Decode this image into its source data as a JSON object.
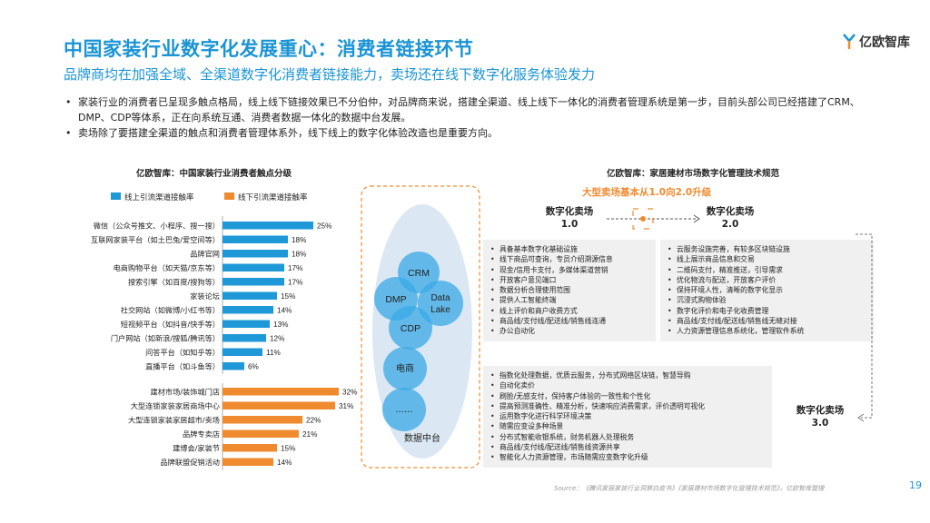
{
  "header": {
    "title": "中国家装行业数字化发展重心：消费者链接环节",
    "subtitle": "品牌商均在加强全域、全渠道数字化消费者链接能力，卖场还在线下数字化服务体验发力",
    "logo_text": "亿欧智库"
  },
  "bullets": [
    "家装行业的消费者已呈现多触点格局，线上线下链接效果已不分伯仲，对品牌商来说，搭建全渠道、线上线下一体化的消费者管理系统是第一步，目前头部公司已经搭建了CRM、DMP、CDP等体系，正在向系统互通、消费者数据一体化的数据中台发展。",
    "卖场除了要搭建全渠道的触点和消费者管理体系外，线下线上的数字化体验改造也是重要方向。"
  ],
  "chart_data": {
    "type": "bar",
    "orientation": "horizontal",
    "title": "亿欧智库：中国家装行业消费者触点分级",
    "legend_position": "top",
    "series": [
      {
        "name": "线上引流渠道接触率",
        "color": "#1e98d7",
        "categories": [
          "微信（公众号推文、小程序、搜一搜）",
          "互联网家装平台（如土巴兔/爱空间等）",
          "品牌官网",
          "电商购物平台（如天猫/京东等）",
          "搜索引擎（如百度/搜狗等）",
          "家装论坛",
          "社交网站（如微博/小红书等）",
          "短视频平台（如抖音/快手等）",
          "门户网站（如新浪/搜狐/腾讯等）",
          "问答平台（如知乎等）",
          "直播平台（如斗鱼等）"
        ],
        "values": [
          25,
          18,
          18,
          17,
          17,
          15,
          14,
          13,
          12,
          11,
          6
        ],
        "labels": [
          "25%",
          "18%",
          "18%",
          "17%",
          "17%",
          "15%",
          "14%",
          "13%",
          "12%",
          "11%",
          "6%"
        ]
      },
      {
        "name": "线下引流渠道接触率",
        "color": "#f08a2e",
        "categories": [
          "建材市场/装饰城门店",
          "大型连锁家装家居商场中心",
          "大型连锁家装家居超市/卖场",
          "品牌专卖店",
          "建博会/家装节",
          "品牌联盟促销活动"
        ],
        "values": [
          32,
          31,
          22,
          21,
          15,
          14
        ],
        "labels": [
          "32%",
          "31%",
          "22%",
          "21%",
          "15%",
          "14%"
        ]
      }
    ],
    "xlim": [
      0,
      35
    ]
  },
  "middle": {
    "circles": [
      "CRM",
      "DMP",
      "Data\nLake",
      "CDP",
      "电商",
      "......"
    ],
    "caption": "数据中台"
  },
  "right": {
    "title": "亿欧智库：家居建材市场数字化管理技术规范",
    "subtitle": "大型卖场基本从1.0向2.0升级",
    "stage1": "数字化卖场\n1.0",
    "stage2": "数字化卖场\n2.0",
    "stage3": "数字化卖场\n3.0",
    "box1": [
      "具备基本数字化基础设施",
      "线下商品可查询，专员介绍溯源信息",
      "现金/信用卡支付，多媒体渠道营销",
      "开放客户意见端口",
      "数据分析合理使用范围",
      "提供人工智能终端",
      "线上评价和商户收费方式",
      "商品线/支付线/配送线/销售线连通",
      "办公自动化"
    ],
    "box2": [
      "云服务设施完善，有较多区块链设施",
      "线上展示商品信息和交易",
      "二维码支付，精准推送，引导需求",
      "优化物流与配送，开放客户评价",
      "保持环境人性，清晰的数字化显示",
      "沉浸式购物体验",
      "数字化评价和电子化收费管理",
      "商品线/支付线/配送线/销售线无缝对接",
      "人力资源管理信息系统化，管理软件系统"
    ],
    "box3": [
      "指数化处理数据，优质云服务，分布式网络区块链，智慧导购",
      "自动化卖价",
      "刷脸/无感支付，保持客户体验的一致性和个性化",
      "提高预测准确性、精准分析，快速响应消费需求，评价透明可视化",
      "运用数字化进行科学环境决策",
      "随需应变设多种场景",
      "分布式智能收银系统，财务机器人处理税务",
      "商品线/支付线/配送线/销售线资源共享",
      "智能化人力资源管理，市场随需应变数字化升级"
    ]
  },
  "footer": {
    "source": "Source：《腾讯家居家装行业洞察白皮书》《家居建材市场数字化管理技术规范》，亿欧智库整理",
    "page_number": "19"
  }
}
